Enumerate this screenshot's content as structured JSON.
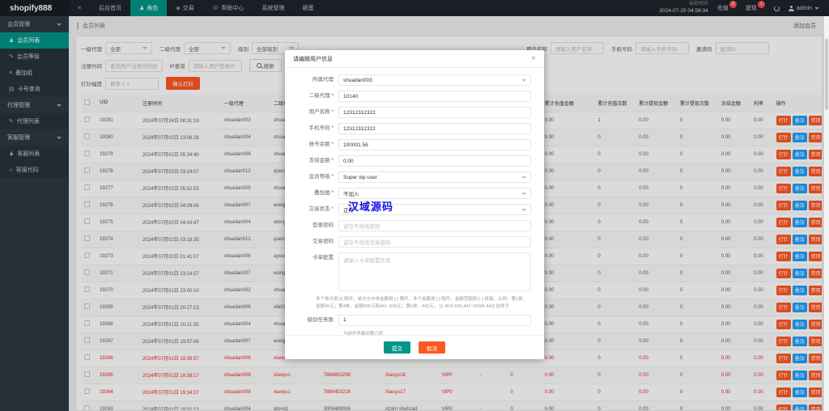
{
  "topbar": {
    "logo": "shopify888",
    "menu": [
      {
        "label": "",
        "icon": "hamburger",
        "active": false
      },
      {
        "label": "后台首页",
        "icon": "",
        "active": false
      },
      {
        "label": "角色",
        "icon": "person",
        "active": true
      },
      {
        "label": "交易",
        "icon": "trade",
        "active": false
      },
      {
        "label": "帮助中心",
        "icon": "headset",
        "active": false
      },
      {
        "label": "系统管理",
        "icon": "",
        "active": false
      },
      {
        "label": "砸蛋",
        "icon": "",
        "active": false
      }
    ],
    "time_label": "当前时间",
    "time_value": "2024-07-25 04:58:34",
    "recharge": {
      "label": "充值",
      "badge": "11"
    },
    "withdraw": {
      "label": "提现",
      "badge": "1"
    },
    "user": "admin"
  },
  "sidebar": {
    "groups": [
      {
        "label": "会员管理",
        "items": [
          {
            "label": "会员列表",
            "icon": "user",
            "active": true
          },
          {
            "label": "会员等级",
            "icon": "link",
            "active": false
          },
          {
            "label": "叠加组",
            "icon": "stack",
            "active": false
          },
          {
            "label": "卡号查询",
            "icon": "card",
            "active": false
          }
        ]
      },
      {
        "label": "代理管理",
        "items": [
          {
            "label": "代理列表",
            "icon": "link",
            "active": false
          }
        ]
      },
      {
        "label": "客服管理",
        "items": [
          {
            "label": "客服列表",
            "icon": "user",
            "active": false
          },
          {
            "label": "客服代码",
            "icon": "code",
            "active": false
          }
        ]
      }
    ]
  },
  "breadcrumb": {
    "title": "会员列表",
    "add_label": "添加会员"
  },
  "filters": {
    "row1": [
      {
        "label": "一级代理",
        "type": "select",
        "value": "全部"
      },
      {
        "label": "二级代理",
        "type": "select",
        "value": "全部"
      },
      {
        "label": "级别",
        "type": "select",
        "value": "全部级别"
      },
      {
        "label": "用户名称",
        "type": "input",
        "placeholder": "请输入用户名称"
      },
      {
        "label": "手机号码",
        "type": "input",
        "placeholder": "请输入手机号码"
      },
      {
        "label": "邀请码",
        "type": "input",
        "placeholder": "邀请码"
      }
    ],
    "row2": [
      {
        "label": "注册时间",
        "type": "input",
        "placeholder": "查询用户注册时间段"
      },
      {
        "label": "IP查询",
        "type": "input",
        "placeholder": "请输入用户登录IP"
      }
    ],
    "search_label": "搜索",
    "export_label": "导出",
    "row3": {
      "label": "打针幅度",
      "placeholder": "概率 1.1",
      "button": "确认打针"
    }
  },
  "table": {
    "headers": [
      "UID",
      "注册时间",
      "一级代理",
      "二级代理",
      "账号",
      "名称",
      "等级",
      "状态",
      "余额",
      "累计充值金额",
      "累计充值次数",
      "累计提现金额",
      "累计提现次数",
      "冻结金额",
      "利率",
      "操作"
    ],
    "actions": [
      {
        "label": "打针",
        "color": "#ff5722"
      },
      {
        "label": "叠加",
        "color": "#1e9fff"
      },
      {
        "label": "禁用",
        "color": "#ff5722"
      },
      {
        "label": "余额",
        "color": "#f5222d"
      },
      {
        "label": "编辑",
        "color": "#16b777"
      }
    ],
    "more_label": "—",
    "rows": [
      {
        "uid": "19281",
        "date": "2024年07月24日 06:31:19",
        "agent1": "shuadan003",
        "agent2": "shuadan3994",
        "account": "12312312322",
        "name": "-",
        "level": "VIP0",
        "online": "-",
        "balance": "0",
        "r_amt": "0.00",
        "r_cnt": "1",
        "w_amt": "0.00",
        "w_cnt": "0",
        "frozen": "0.00",
        "rate": "0.00",
        "red": false
      },
      {
        "uid": "19280",
        "date": "2024年07月02日 23:06:28",
        "agent1": "shuadan004",
        "agent2": "shuadan0984",
        "account": "3003137064",
        "name": "-",
        "level": "VIP0",
        "online": "-",
        "balance": "0",
        "r_amt": "0.00",
        "r_cnt": "0",
        "w_amt": "0.00",
        "w_cnt": "0",
        "frozen": "0.00",
        "rate": "0.00",
        "red": false
      },
      {
        "uid": "19279",
        "date": "2024年07月02日 05:34:40",
        "agent1": "shuadan006",
        "agent2": "shuadan0908",
        "account": "3938746538",
        "name": "-",
        "level": "VIP0",
        "online": "-",
        "balance": "0",
        "r_amt": "0.00",
        "r_cnt": "0",
        "w_amt": "0.00",
        "w_cnt": "0",
        "frozen": "0.00",
        "rate": "0.00",
        "red": false
      },
      {
        "uid": "19278",
        "date": "2024年07月02日 03:24:07",
        "agent1": "shuadan012",
        "agent2": "qiaoch77",
        "account": "3137751158",
        "name": "-",
        "level": "VIP0",
        "online": "-",
        "balance": "0",
        "r_amt": "0.00",
        "r_cnt": "0",
        "w_amt": "0.00",
        "w_cnt": "0",
        "frozen": "0.00",
        "rate": "0.00",
        "red": false
      },
      {
        "uid": "19277",
        "date": "2024年07月02日 05:52:53",
        "agent1": "shuadan005",
        "agent2": "shuadan0006",
        "account": "3456868785",
        "name": "-",
        "level": "VIP0",
        "online": "-",
        "balance": "0",
        "r_amt": "0.00",
        "r_cnt": "0",
        "w_amt": "0.00",
        "w_cnt": "0",
        "frozen": "0.00",
        "rate": "0.00",
        "red": false
      },
      {
        "uid": "19276",
        "date": "2024年07月02日 04:09:06",
        "agent1": "shuadan007",
        "agent2": "wangming33",
        "account": "9034549381",
        "name": "-",
        "level": "VIP0",
        "online": "-",
        "balance": "0",
        "r_amt": "0.00",
        "r_cnt": "0",
        "w_amt": "0.00",
        "w_cnt": "0",
        "frozen": "0.00",
        "rate": "0.00",
        "red": false
      },
      {
        "uid": "19275",
        "date": "2024年07月02日 04:04:47",
        "agent1": "shuadan004",
        "agent2": "atong1",
        "account": "3057295771",
        "name": "-",
        "level": "VIP0",
        "online": "-",
        "balance": "0",
        "r_amt": "0.00",
        "r_cnt": "0",
        "w_amt": "0.00",
        "w_cnt": "0",
        "frozen": "0.00",
        "rate": "0.00",
        "red": false
      },
      {
        "uid": "19274",
        "date": "2024年07月02日 03:18:35",
        "agent1": "shuadan012",
        "agent2": "qiaoch74",
        "account": "0342918733",
        "name": "-",
        "level": "VIP0",
        "online": "-",
        "balance": "0",
        "r_amt": "0.00",
        "r_cnt": "0",
        "w_amt": "0.00",
        "w_cnt": "0",
        "frozen": "0.00",
        "rate": "0.00",
        "red": false
      },
      {
        "uid": "19273",
        "date": "2024年07月02日 01:41:07",
        "agent1": "shuadan006",
        "agent2": "ayou43",
        "account": "3129748981",
        "name": "-",
        "level": "VIP0",
        "online": "-",
        "balance": "0",
        "r_amt": "0.00",
        "r_cnt": "0",
        "w_amt": "0.00",
        "w_cnt": "0",
        "frozen": "0.00",
        "rate": "0.00",
        "red": false
      },
      {
        "uid": "19271",
        "date": "2024年07月01日 23:14:27",
        "agent1": "shuadan007",
        "agent2": "wangming33",
        "account": "5465595941",
        "name": "-",
        "level": "VIP0",
        "online": "-",
        "balance": "0",
        "r_amt": "0.00",
        "r_cnt": "0",
        "w_amt": "0.00",
        "w_cnt": "0",
        "frozen": "0.00",
        "rate": "0.00",
        "red": false
      },
      {
        "uid": "19270",
        "date": "2024年07月01日 23:00:10",
        "agent1": "shuadan002",
        "agent2": "shuadan0031",
        "account": "3032205461",
        "name": "-",
        "level": "VIP0",
        "online": "-",
        "balance": "0",
        "r_amt": "0.00",
        "r_cnt": "0",
        "w_amt": "0.00",
        "w_cnt": "0",
        "frozen": "0.00",
        "rate": "0.00",
        "red": false
      },
      {
        "uid": "19269",
        "date": "2024年07月01日 20:27:13",
        "agent1": "shuadan006",
        "agent2": "afa010",
        "account": "3336671234",
        "name": "-",
        "level": "VIP0",
        "online": "-",
        "balance": "0",
        "r_amt": "0.00",
        "r_cnt": "0",
        "w_amt": "0.00",
        "w_cnt": "0",
        "frozen": "0.00",
        "rate": "0.00",
        "red": false
      },
      {
        "uid": "19268",
        "date": "2024年07月01日 20:21:35",
        "agent1": "shuadan004",
        "agent2": "shuadan0970",
        "account": "0321412791",
        "name": "-",
        "level": "VIP0",
        "online": "-",
        "balance": "0",
        "r_amt": "0.00",
        "r_cnt": "0",
        "w_amt": "0.00",
        "w_cnt": "0",
        "frozen": "0.00",
        "rate": "0.00",
        "red": false
      },
      {
        "uid": "19267",
        "date": "2024年07月01日 19:57:06",
        "agent1": "shuadan007",
        "agent2": "wangming33",
        "account": "5135465432",
        "name": "-",
        "level": "VIP0",
        "online": "-",
        "balance": "0",
        "r_amt": "0.00",
        "r_cnt": "0",
        "w_amt": "0.00",
        "w_cnt": "0",
        "frozen": "0.00",
        "rate": "0.00",
        "red": false
      },
      {
        "uid": "19266",
        "date": "2024年07月01日 19:39:57",
        "agent1": "shuadan008",
        "agent2": "xiaoyu1",
        "account": "7889553251",
        "name": "-",
        "level": "VIP0",
        "online": "-",
        "balance": "0",
        "r_amt": "0.00",
        "r_cnt": "0",
        "w_amt": "0.00",
        "w_cnt": "0",
        "frozen": "0.00",
        "rate": "0.00",
        "red": true
      },
      {
        "uid": "19265",
        "date": "2024年07月01日 19:38:17",
        "agent1": "shuadan008",
        "agent2": "xiaoyu1",
        "account": "7884653238",
        "name": "Xiaoyu18",
        "level": "VIP0",
        "online": "-",
        "balance": "0",
        "r_amt": "0.00",
        "r_cnt": "0",
        "w_amt": "0.00",
        "w_cnt": "0",
        "frozen": "0.00",
        "rate": "0.00",
        "red": true
      },
      {
        "uid": "19264",
        "date": "2024年07月01日 19:34:27",
        "agent1": "shuadan008",
        "agent2": "xiaoyu1",
        "account": "7886453216",
        "name": "Xiaoyu17",
        "level": "VIP0",
        "online": "-",
        "balance": "0",
        "r_amt": "0.00",
        "r_cnt": "0",
        "w_amt": "0.00",
        "w_cnt": "0",
        "frozen": "0.00",
        "rate": "0.00",
        "red": true
      },
      {
        "uid": "19263",
        "date": "2024年07月01日 19:32:13",
        "agent1": "shuadan004",
        "agent2": "atong1",
        "account": "3006489036",
        "name": "Azam shahzad",
        "level": "VIP0",
        "online": "-",
        "balance": "0",
        "r_amt": "0.00",
        "r_cnt": "0",
        "w_amt": "0.00",
        "w_cnt": "0",
        "frozen": "0.00",
        "rate": "0.00",
        "red": false
      }
    ]
  },
  "modal": {
    "title": "请编辑用户信息",
    "fields": [
      {
        "label": "所属代理",
        "required": false,
        "type": "select",
        "value": "shuadan003"
      },
      {
        "label": "二级代理",
        "required": true,
        "type": "input",
        "value": "10140"
      },
      {
        "label": "用户名称",
        "required": true,
        "type": "input",
        "value": "12312312322"
      },
      {
        "label": "手机号码",
        "required": true,
        "type": "input",
        "value": "12312312322"
      },
      {
        "label": "账号余额",
        "required": true,
        "type": "input",
        "value": "100001.56"
      },
      {
        "label": "冻结金额",
        "required": true,
        "type": "input",
        "value": "0.00"
      },
      {
        "label": "会员等级",
        "required": true,
        "type": "select",
        "value": "Super vip user"
      },
      {
        "label": "叠加组",
        "required": true,
        "type": "select",
        "value": "不加入"
      },
      {
        "label": "交易状态",
        "required": true,
        "type": "select",
        "value": "正常"
      },
      {
        "label": "登录密码",
        "required": false,
        "type": "input",
        "placeholder": "留空不修改密码"
      },
      {
        "label": "交易密码",
        "required": false,
        "type": "input",
        "placeholder": "留空不修改交易密码"
      },
      {
        "label": "卡单配置",
        "required": false,
        "type": "textarea",
        "placeholder": "请输入卡单配置信息",
        "hint": "多个单次用 [/] 隔开，单次与卡单金额用 [-] 隔开，多个金额用 [,] 隔开，金额范围用 [~] 拼接，示例：第1单，金额45元；第4单，金额555元和441~600元；第6单，442元。 [1-45/4-555,441~600/6-442] 这样子",
        "hint_class": ""
      },
      {
        "label": "级别任务数",
        "required": false,
        "type": "input",
        "value": "1",
        "hint": "当前任务做到第几轮",
        "hint_class": "short"
      }
    ],
    "submit": "提交",
    "cancel": "取消",
    "close": "×"
  },
  "watermark": "汉域源码",
  "colors": {
    "accent_teal": "#009688",
    "accent_orange": "#ff5722",
    "danger_red": "#f5222d"
  }
}
